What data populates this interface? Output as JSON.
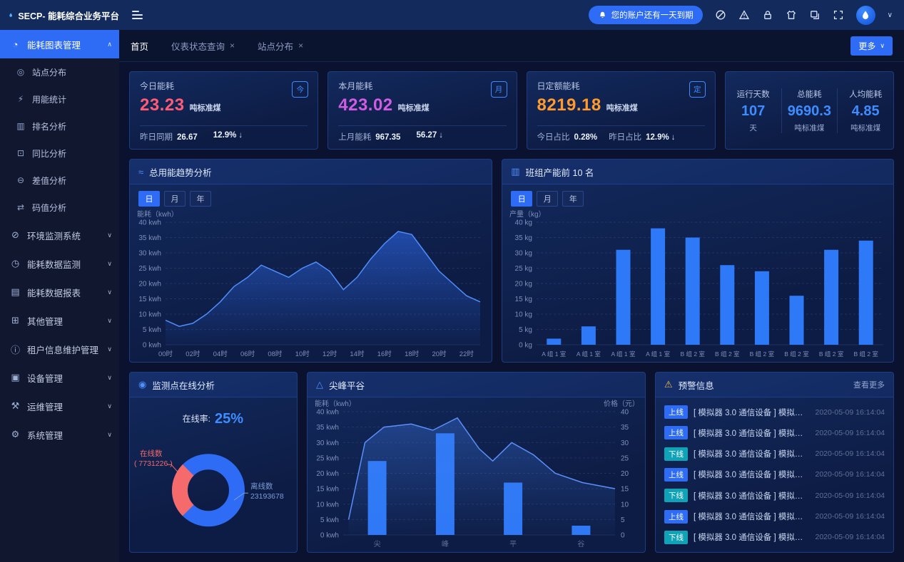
{
  "topbar": {
    "logo_text": "SECP- 能耗综合业务平台",
    "notice": "您的账户还有一天到期"
  },
  "sidebar": {
    "items": [
      {
        "label": "能耗图表管理",
        "icon": "energy-chart-icon",
        "glyph": "◔",
        "active": true,
        "expanded": true,
        "children": [
          {
            "label": "站点分布",
            "icon": "site-distribution-icon",
            "glyph": "◎"
          },
          {
            "label": "用能统计",
            "icon": "energy-usage-icon",
            "glyph": "⚡"
          },
          {
            "label": "排名分析",
            "icon": "ranking-icon",
            "glyph": "▥"
          },
          {
            "label": "同比分析",
            "icon": "yoy-compare-icon",
            "glyph": "⊡"
          },
          {
            "label": "差值分析",
            "icon": "difference-icon",
            "glyph": "⊖"
          },
          {
            "label": "码值分析",
            "icon": "code-value-icon",
            "glyph": "⇄"
          }
        ]
      },
      {
        "label": "环境监测系统",
        "icon": "environment-icon",
        "glyph": "⊘",
        "active": false,
        "expanded": false
      },
      {
        "label": "能耗数据监测",
        "icon": "data-monitor-icon",
        "glyph": "◷",
        "active": false,
        "expanded": false
      },
      {
        "label": "能耗数据报表",
        "icon": "report-icon",
        "glyph": "▤",
        "active": false,
        "expanded": false
      },
      {
        "label": "其他管理",
        "icon": "other-mgmt-icon",
        "glyph": "⊞",
        "active": false,
        "expanded": false
      },
      {
        "label": "租户信息维护管理",
        "icon": "tenant-info-icon",
        "glyph": "ⓘ",
        "active": false,
        "expanded": false
      },
      {
        "label": "设备管理",
        "icon": "device-mgmt-icon",
        "glyph": "▣",
        "active": false,
        "expanded": false
      },
      {
        "label": "运维管理",
        "icon": "ops-mgmt-icon",
        "glyph": "⚒",
        "active": false,
        "expanded": false
      },
      {
        "label": "系统管理",
        "icon": "system-mgmt-icon",
        "glyph": "⚙",
        "active": false,
        "expanded": false
      }
    ]
  },
  "tabbar": {
    "tabs": [
      {
        "label": "首页",
        "active": true,
        "closable": false
      },
      {
        "label": "仪表状态查询",
        "active": false,
        "closable": true
      },
      {
        "label": "站点分布",
        "active": false,
        "closable": true
      }
    ],
    "more_label": "更多"
  },
  "stat_cards": [
    {
      "title": "今日能耗",
      "value": "23.23",
      "unit": "吨标准煤",
      "color": "#ff5b76",
      "badge": "今",
      "footer": [
        {
          "label": "昨日同期",
          "value": "26.67"
        },
        {
          "label": "",
          "value": "12.9%",
          "arrow": "↓"
        }
      ]
    },
    {
      "title": "本月能耗",
      "value": "423.02",
      "unit": "吨标准煤",
      "color": "#d05ce3",
      "badge": "月",
      "footer": [
        {
          "label": "上月能耗",
          "value": "967.35"
        },
        {
          "label": "",
          "value": "56.27",
          "arrow": "↓"
        }
      ]
    },
    {
      "title": "日定额能耗",
      "value": "8219.18",
      "unit": "吨标准煤",
      "color": "#ff9a2e",
      "badge": "定",
      "footer": [
        {
          "label": "今日占比",
          "value": "0.28%"
        },
        {
          "label": "昨日占比",
          "value": "12.9%",
          "arrow": "↓"
        }
      ]
    }
  ],
  "summary_card": {
    "items": [
      {
        "label": "运行天数",
        "value": "107",
        "unit": "天"
      },
      {
        "label": "总能耗",
        "value": "9690.3",
        "unit": "吨标准煤"
      },
      {
        "label": "人均能耗",
        "value": "4.85",
        "unit": "吨标准煤"
      }
    ]
  },
  "chart_data": [
    {
      "id": "trend",
      "type": "area",
      "title": "总用能趋势分析",
      "icon": "trend-chart-icon",
      "glyph": "≈",
      "tabs": [
        "日",
        "月",
        "年"
      ],
      "active_tab": "日",
      "ylabel": "能耗（kwh）",
      "y_suffix": " kwh",
      "ylim": [
        0,
        40
      ],
      "y_ticks": [
        0,
        5,
        10,
        15,
        20,
        25,
        30,
        35,
        40
      ],
      "x": [
        "00时",
        "02时",
        "04时",
        "06时",
        "08时",
        "10时",
        "12时",
        "14时",
        "16时",
        "18时",
        "20时",
        "22时"
      ],
      "values": [
        8,
        6,
        7,
        10,
        14,
        19,
        22,
        26,
        24,
        22,
        25,
        27,
        24,
        18,
        22,
        28,
        33,
        37,
        36,
        30,
        24,
        20,
        16,
        14
      ]
    },
    {
      "id": "team",
      "type": "bar",
      "title": "班组产能前 10 名",
      "icon": "team-output-icon",
      "glyph": "▥",
      "tabs": [
        "日",
        "月",
        "年"
      ],
      "active_tab": "日",
      "ylabel": "产量（kg）",
      "y_suffix": " kg",
      "ylim": [
        0,
        40
      ],
      "y_ticks": [
        0,
        5,
        10,
        15,
        20,
        25,
        30,
        35,
        40
      ],
      "categories": [
        "A 组 1 室",
        "A 组 1 室",
        "A 组 1 室",
        "A 组 1 室",
        "B 组 2 室",
        "B 组 2 室",
        "B 组 2 室",
        "B 组 2 室",
        "B 组 2 室",
        "B 组 2 室"
      ],
      "values": [
        2,
        6,
        31,
        38,
        35,
        26,
        24,
        16,
        31,
        34
      ]
    },
    {
      "id": "online",
      "type": "pie",
      "title": "监测点在线分析",
      "icon": "online-points-icon",
      "glyph": "◉",
      "rate_label": "在线率:",
      "rate_value": "25%",
      "slices": [
        {
          "name": "在线数",
          "count": "( 7731226 )",
          "pct": 25,
          "color": "#f56a6a"
        },
        {
          "name": "离线数",
          "count": "23193678",
          "pct": 75,
          "color": "#2e6cf5"
        }
      ]
    },
    {
      "id": "peak",
      "type": "combo",
      "title": "尖峰平谷",
      "icon": "peak-valley-icon",
      "glyph": "△",
      "ylabel_left": "能耗（kwh）",
      "ylabel_right": "价格（元）",
      "y_suffix": " kwh",
      "ylim": [
        0,
        40
      ],
      "y_ticks": [
        0,
        5,
        10,
        15,
        20,
        25,
        30,
        35,
        40
      ],
      "y_ticks_right": [
        0,
        5,
        10,
        15,
        20,
        25,
        30,
        35,
        40
      ],
      "categories": [
        "尖",
        "峰",
        "平",
        "谷"
      ],
      "bars": [
        24,
        33,
        17,
        3
      ],
      "price_line": [
        [
          0.02,
          5
        ],
        [
          0.08,
          30
        ],
        [
          0.15,
          35
        ],
        [
          0.25,
          36
        ],
        [
          0.33,
          34
        ],
        [
          0.42,
          38
        ],
        [
          0.5,
          28
        ],
        [
          0.55,
          24
        ],
        [
          0.62,
          30
        ],
        [
          0.7,
          26
        ],
        [
          0.78,
          20
        ],
        [
          0.88,
          17
        ],
        [
          1,
          15
        ]
      ]
    }
  ],
  "alerts": {
    "title": "预警信息",
    "more_label": "查看更多",
    "items": [
      {
        "status": "上线",
        "text": "[ 模拟器 3.0 通信设备 ] 模拟器 3.0...",
        "time": "2020-05-09 16:14:04"
      },
      {
        "status": "上线",
        "text": "[ 模拟器 3.0 通信设备 ] 模拟器 3.0...",
        "time": "2020-05-09 16:14:04"
      },
      {
        "status": "下线",
        "text": "[ 模拟器 3.0 通信设备 ] 模拟器 3.0...",
        "time": "2020-05-09 16:14:04"
      },
      {
        "status": "上线",
        "text": "[ 模拟器 3.0 通信设备 ] 模拟器 3.0...",
        "time": "2020-05-09 16:14:04"
      },
      {
        "status": "下线",
        "text": "[ 模拟器 3.0 通信设备 ] 模拟器 3.0...",
        "time": "2020-05-09 16:14:04"
      },
      {
        "status": "上线",
        "text": "[ 模拟器 3.0 通信设备 ] 模拟器 3.0...",
        "time": "2020-05-09 16:14:04"
      },
      {
        "status": "下线",
        "text": "[ 模拟器 3.0 通信设备 ] 模拟器 3.0...",
        "time": "2020-05-09 16:14:04"
      }
    ]
  },
  "colors": {
    "accent": "#2e6cf5",
    "bar": "#2e79f7",
    "line": "#4f8df9",
    "value_pink": "#ff5b76",
    "value_purple": "#d05ce3",
    "value_orange": "#ff9a2e",
    "value_blue": "#3f8cff",
    "online_pink": "#f56a6a",
    "badge_online": "#2e6cf5",
    "badge_offline": "#10a3b8"
  }
}
